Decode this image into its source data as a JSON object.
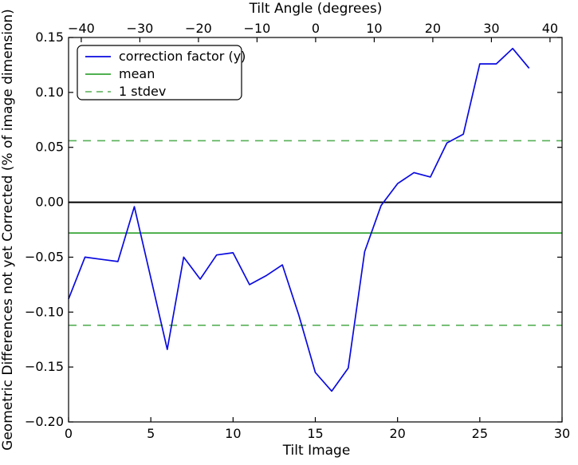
{
  "chart_data": {
    "type": "line",
    "title": "",
    "background": "#ffffff",
    "grid": false,
    "x_axis": {
      "title": "Tilt Image",
      "range": [
        0,
        30
      ],
      "ticks": [
        0,
        5,
        10,
        15,
        20,
        25,
        30
      ]
    },
    "y_axis": {
      "title": "Geometric Differences not yet Corrected (% of image dimension)",
      "range": [
        -0.2,
        0.15
      ],
      "ticks": [
        0.15,
        0.1,
        0.05,
        0.0,
        -0.05,
        -0.1,
        -0.15,
        -0.2
      ]
    },
    "top_axis": {
      "title": "Tilt Angle (degrees)",
      "ticks": [
        -40,
        -30,
        -20,
        -10,
        0,
        10,
        20,
        30,
        40
      ],
      "image_unit_offset": 15.02,
      "image_units_per_degree": 0.3562
    },
    "series": [
      {
        "name": "correction factor (y)",
        "color": "#0a0ae0",
        "style": "solid",
        "width": 1.7,
        "x_is_index": true,
        "values": [
          -0.088,
          -0.05,
          -0.052,
          -0.054,
          -0.004,
          -0.069,
          -0.134,
          -0.05,
          -0.07,
          -0.048,
          -0.046,
          -0.075,
          -0.067,
          -0.057,
          -0.103,
          -0.155,
          -0.172,
          -0.151,
          -0.045,
          -0.003,
          0.017,
          0.027,
          0.023,
          0.054,
          0.062,
          0.126,
          0.126,
          0.14,
          0.122
        ]
      }
    ],
    "reference_lines": [
      {
        "name": "zero-line",
        "value": 0.0,
        "color": "#000000",
        "style": "solid",
        "width": 2.0
      },
      {
        "name": "mean-line",
        "value": -0.028,
        "color": "#169616",
        "style": "solid",
        "width": 1.4
      },
      {
        "name": "stdev-upper",
        "value": 0.056,
        "color": "#57b057",
        "style": "dashed",
        "width": 1.6
      },
      {
        "name": "stdev-lower",
        "value": -0.112,
        "color": "#57b057",
        "style": "dashed",
        "width": 1.6
      }
    ],
    "legend": {
      "position": "upper left",
      "items": [
        {
          "label": "correction factor (y)",
          "color": "#0a0ae0",
          "style": "solid"
        },
        {
          "label": "mean",
          "color": "#169616",
          "style": "solid"
        },
        {
          "label": "1 stdev",
          "color": "#57b057",
          "style": "dashed"
        }
      ]
    }
  }
}
